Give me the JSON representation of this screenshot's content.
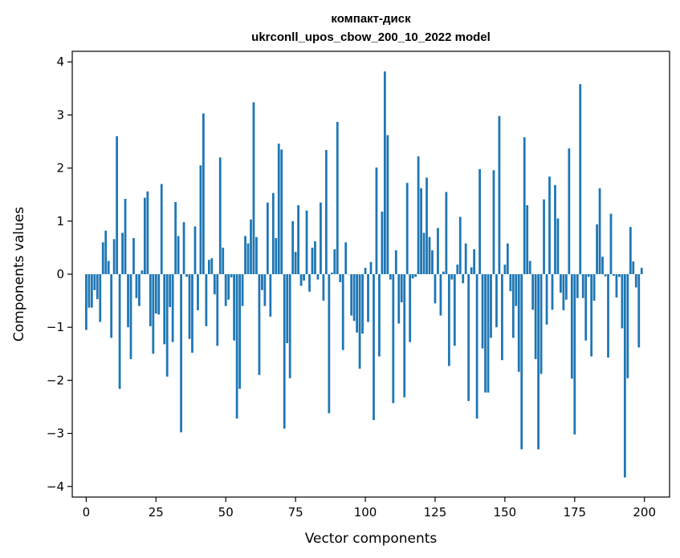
{
  "chart_data": {
    "type": "bar",
    "title": "компакт-диск",
    "subtitle": "ukrconll_upos_cbow_200_10_2022 model",
    "xlabel": "Vector components",
    "ylabel": "Components values",
    "xlim": [
      -5,
      209
    ],
    "ylim": [
      -4.2,
      4.2
    ],
    "xticks": [
      0,
      25,
      50,
      75,
      100,
      125,
      150,
      175,
      200
    ],
    "yticks": [
      -4,
      -3,
      -2,
      -1,
      0,
      1,
      2,
      3,
      4
    ],
    "bar_color": "#1f77b4",
    "x": [
      0,
      1,
      2,
      3,
      4,
      5,
      6,
      7,
      8,
      9,
      10,
      11,
      12,
      13,
      14,
      15,
      16,
      17,
      18,
      19,
      20,
      21,
      22,
      23,
      24,
      25,
      26,
      27,
      28,
      29,
      30,
      31,
      32,
      33,
      34,
      35,
      36,
      37,
      38,
      39,
      40,
      41,
      42,
      43,
      44,
      45,
      46,
      47,
      48,
      49,
      50,
      51,
      52,
      53,
      54,
      55,
      56,
      57,
      58,
      59,
      60,
      61,
      62,
      63,
      64,
      65,
      66,
      67,
      68,
      69,
      70,
      71,
      72,
      73,
      74,
      75,
      76,
      77,
      78,
      79,
      80,
      81,
      82,
      83,
      84,
      85,
      86,
      87,
      88,
      89,
      90,
      91,
      92,
      93,
      94,
      95,
      96,
      97,
      98,
      99,
      100,
      101,
      102,
      103,
      104,
      105,
      106,
      107,
      108,
      109,
      110,
      111,
      112,
      113,
      114,
      115,
      116,
      117,
      118,
      119,
      120,
      121,
      122,
      123,
      124,
      125,
      126,
      127,
      128,
      129,
      130,
      131,
      132,
      133,
      134,
      135,
      136,
      137,
      138,
      139,
      140,
      141,
      142,
      143,
      144,
      145,
      146,
      147,
      148,
      149,
      150,
      151,
      152,
      153,
      154,
      155,
      156,
      157,
      158,
      159,
      160,
      161,
      162,
      163,
      164,
      165,
      166,
      167,
      168,
      169,
      170,
      171,
      172,
      173,
      174,
      175,
      176,
      177,
      178,
      179,
      180,
      181,
      182,
      183,
      184,
      185,
      186,
      187,
      188,
      189,
      190,
      191,
      192,
      193,
      194,
      195,
      196,
      197,
      198,
      199
    ],
    "values": [
      -1.05,
      -0.63,
      -0.63,
      -0.3,
      -0.47,
      -0.9,
      0.6,
      0.82,
      0.25,
      -1.2,
      0.66,
      2.6,
      -2.16,
      0.78,
      1.42,
      -1.0,
      -1.6,
      0.68,
      -0.45,
      -0.6,
      0.07,
      1.44,
      1.56,
      -0.98,
      -1.5,
      -0.74,
      -0.76,
      1.7,
      -1.32,
      -1.93,
      -0.62,
      -1.28,
      1.36,
      0.72,
      -2.98,
      0.98,
      -0.05,
      -1.22,
      -1.48,
      0.9,
      -0.68,
      2.05,
      3.03,
      -0.98,
      0.27,
      0.3,
      -0.38,
      -1.35,
      2.2,
      0.5,
      -0.6,
      -0.48,
      -0.06,
      -1.25,
      -2.72,
      -2.16,
      -0.6,
      0.72,
      0.58,
      1.03,
      3.24,
      0.7,
      -1.9,
      -0.3,
      -0.6,
      1.35,
      -0.8,
      1.53,
      0.68,
      2.46,
      2.35,
      -2.91,
      -1.3,
      -1.96,
      1.0,
      0.42,
      1.3,
      -0.22,
      -0.12,
      1.2,
      -0.33,
      0.5,
      0.62,
      -0.1,
      1.35,
      -0.5,
      2.34,
      -2.62,
      0.03,
      0.47,
      2.87,
      -0.15,
      -1.43,
      0.6,
      0.0,
      -0.78,
      -0.88,
      -1.1,
      -1.78,
      -1.12,
      0.12,
      -0.9,
      0.23,
      -2.75,
      2.01,
      -1.55,
      1.18,
      3.82,
      2.62,
      -0.1,
      -2.43,
      0.45,
      -0.93,
      -0.53,
      -2.32,
      1.72,
      -1.28,
      -0.08,
      -0.05,
      2.22,
      1.62,
      0.78,
      1.82,
      0.7,
      0.45,
      -0.55,
      0.87,
      -0.78,
      0.05,
      1.55,
      -1.73,
      -0.1,
      -1.35,
      0.18,
      1.08,
      -0.17,
      0.58,
      -2.39,
      0.13,
      0.47,
      -2.72,
      1.98,
      -1.4,
      -2.23,
      -2.23,
      -1.2,
      1.96,
      -1.0,
      2.98,
      -1.62,
      0.18,
      0.58,
      -0.32,
      -1.2,
      -0.6,
      -1.84,
      -3.3,
      2.58,
      1.3,
      0.25,
      -0.67,
      -1.6,
      -3.3,
      -1.88,
      1.41,
      -0.95,
      1.84,
      -0.67,
      1.68,
      1.05,
      -0.35,
      -0.68,
      -0.48,
      2.37,
      -1.97,
      -3.02,
      -0.45,
      3.58,
      -0.45,
      -1.25,
      -0.05,
      -1.55,
      -0.5,
      0.94,
      1.62,
      0.33,
      -0.04,
      -1.57,
      1.14,
      -0.03,
      -0.44,
      -0.05,
      -1.02,
      -3.83,
      -1.96,
      0.89,
      0.24,
      -0.25,
      -1.38,
      0.12
    ]
  }
}
